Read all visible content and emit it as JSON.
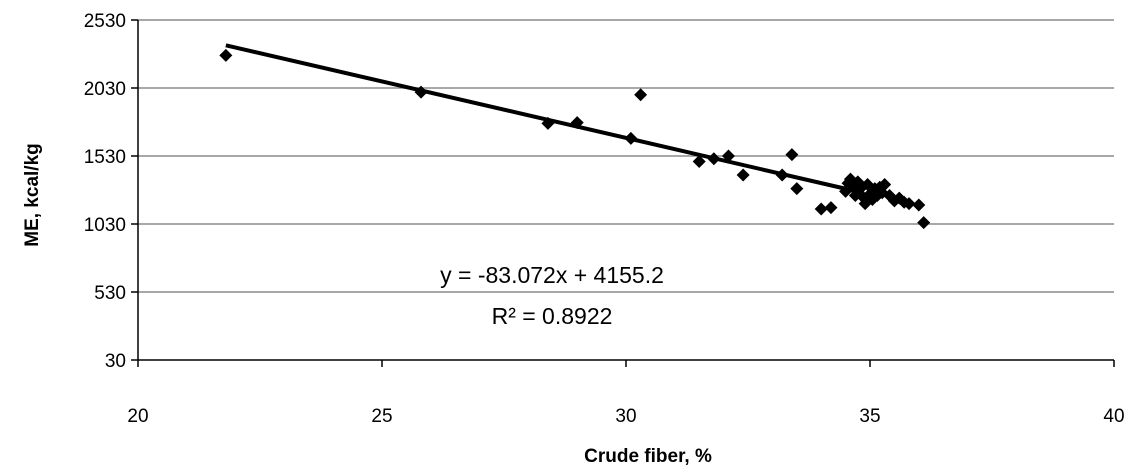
{
  "chart_data": {
    "type": "scatter",
    "xlabel": "Crude fiber, %",
    "ylabel": "ME, kcal/kg",
    "xlim": [
      20,
      40
    ],
    "ylim": [
      30,
      2530
    ],
    "x_ticks": [
      20,
      25,
      30,
      35,
      40
    ],
    "y_ticks": [
      30,
      530,
      1030,
      1530,
      2030,
      2530
    ],
    "grid": "horizontal",
    "marker_color": "#000000",
    "line_color": "#000000",
    "points": [
      [
        21.8,
        2270
      ],
      [
        25.8,
        2000
      ],
      [
        28.4,
        1770
      ],
      [
        29.0,
        1775
      ],
      [
        30.1,
        1660
      ],
      [
        30.3,
        1980
      ],
      [
        31.5,
        1490
      ],
      [
        31.8,
        1510
      ],
      [
        32.1,
        1530
      ],
      [
        32.4,
        1390
      ],
      [
        33.2,
        1390
      ],
      [
        33.4,
        1540
      ],
      [
        33.5,
        1290
      ],
      [
        34.0,
        1140
      ],
      [
        34.2,
        1150
      ],
      [
        34.5,
        1270
      ],
      [
        34.55,
        1330
      ],
      [
        34.6,
        1360
      ],
      [
        34.65,
        1300
      ],
      [
        34.7,
        1240
      ],
      [
        34.75,
        1340
      ],
      [
        34.8,
        1290
      ],
      [
        34.85,
        1230
      ],
      [
        34.9,
        1180
      ],
      [
        34.95,
        1320
      ],
      [
        35.0,
        1250
      ],
      [
        35.05,
        1210
      ],
      [
        35.1,
        1290
      ],
      [
        35.15,
        1240
      ],
      [
        35.2,
        1300
      ],
      [
        35.25,
        1260
      ],
      [
        35.3,
        1320
      ],
      [
        35.4,
        1240
      ],
      [
        35.5,
        1200
      ],
      [
        35.6,
        1220
      ],
      [
        35.7,
        1190
      ],
      [
        35.8,
        1180
      ],
      [
        36.0,
        1170
      ],
      [
        36.1,
        1040
      ]
    ],
    "trendline": {
      "slope": -83.072,
      "intercept": 4155.2,
      "x_range": [
        21.8,
        34.6
      ]
    },
    "annotations": {
      "equation": "y = -83.072x + 4155.2",
      "r_squared": "R² = 0.8922"
    }
  }
}
